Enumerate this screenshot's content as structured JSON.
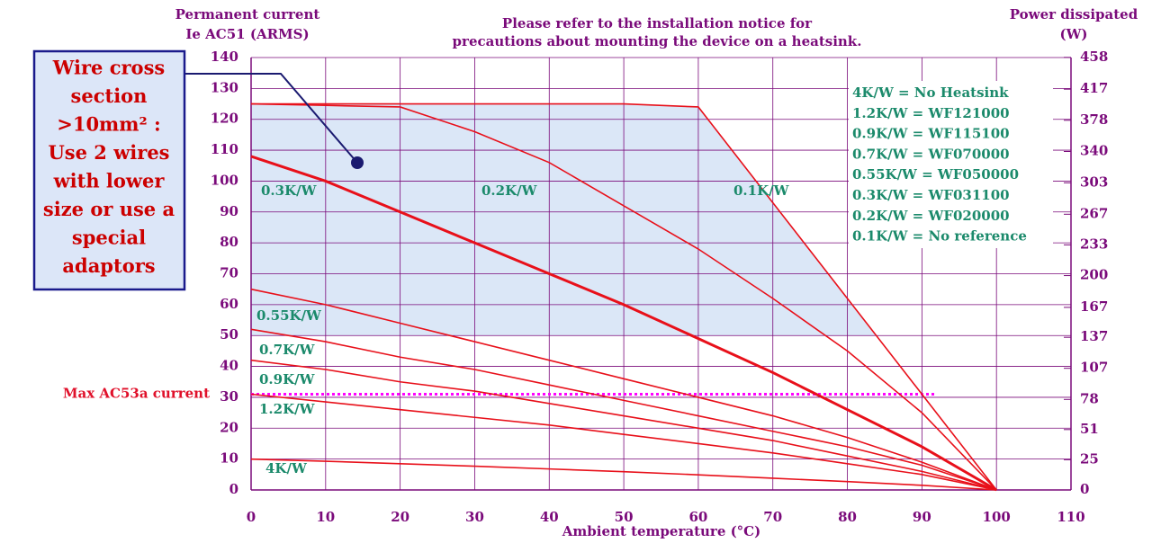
{
  "chart_data": {
    "type": "line",
    "y_label": [
      "Permanent current",
      "Ie AC51 (ARMS)"
    ],
    "note": [
      "Please refer to the installation notice for",
      "precautions about mounting the device on a heatsink."
    ],
    "y2_label": [
      "Power dissipated",
      "(W)"
    ],
    "x_label": "Ambient temperature (°C)",
    "xlim": [
      0,
      110
    ],
    "xticks": [
      0,
      10,
      20,
      30,
      40,
      50,
      60,
      70,
      80,
      90,
      100,
      110
    ],
    "ylim": [
      0,
      140
    ],
    "yticks": [
      0,
      10,
      20,
      30,
      40,
      50,
      60,
      70,
      80,
      90,
      100,
      110,
      120,
      130,
      140
    ],
    "y2lim": [
      0,
      458
    ],
    "y2ticks": [
      0,
      25,
      51,
      78,
      107,
      137,
      167,
      200,
      233,
      267,
      303,
      340,
      378,
      417,
      458
    ],
    "grid": true,
    "axis_color": "#7a0a7a",
    "x": [
      0,
      10,
      20,
      30,
      40,
      50,
      60,
      70,
      80,
      90,
      100
    ],
    "series": [
      {
        "name": "0.1K/W",
        "color": "#e8101a",
        "values": [
          125,
          125,
          125,
          125,
          125,
          125,
          124,
          93,
          62,
          31,
          0
        ]
      },
      {
        "name": "0.2K/W",
        "color": "#e8101a",
        "values": [
          125,
          124.5,
          124,
          116,
          106,
          92,
          78,
          62,
          45,
          25,
          0
        ]
      },
      {
        "name": "0.3K/W",
        "color": "#e8101a",
        "values": [
          108,
          100,
          90,
          80,
          70,
          60,
          49,
          38,
          26,
          14,
          0
        ]
      },
      {
        "name": "0.55K/W",
        "color": "#e8101a",
        "values": [
          65,
          60,
          54,
          48,
          42,
          36,
          30,
          24,
          17,
          9,
          0
        ]
      },
      {
        "name": "0.7K/W",
        "color": "#e8101a",
        "values": [
          52,
          48,
          43,
          39,
          34,
          29,
          24,
          19,
          14,
          8,
          0
        ]
      },
      {
        "name": "0.9K/W",
        "color": "#e8101a",
        "values": [
          42,
          39,
          35,
          32,
          28,
          24,
          20,
          16,
          11,
          6,
          0
        ]
      },
      {
        "name": "1.2K/W",
        "color": "#e8101a",
        "values": [
          31,
          28.5,
          26,
          23.5,
          21,
          18,
          15,
          12,
          8.5,
          5,
          0
        ]
      },
      {
        "name": "4K/W",
        "color": "#e8101a",
        "values": [
          10,
          9.3,
          8.5,
          7.7,
          6.8,
          5.9,
          4.9,
          3.8,
          2.7,
          1.5,
          0
        ]
      }
    ],
    "band_floor": 50,
    "band_color": "#dbe7f7",
    "reference_line": {
      "text": "Max AC53a current",
      "y": 31,
      "x_end": 92,
      "color": "#ff00ff",
      "text_color": "#e0102a"
    },
    "legend_notes": [
      "4K/W = No Heatsink",
      "1.2K/W = WF121000",
      "0.9K/W = WF115100",
      "0.7K/W = WF070000",
      "0.55K/W = WF050000",
      "0.3K/W = WF031100",
      "0.2K/W = WF020000",
      "0.1K/W = No reference"
    ],
    "callout": [
      "Wire cross",
      "section",
      ">10mm² :",
      "Use 2 wires",
      "with lower",
      "size or use a",
      "special",
      "adaptors"
    ]
  }
}
